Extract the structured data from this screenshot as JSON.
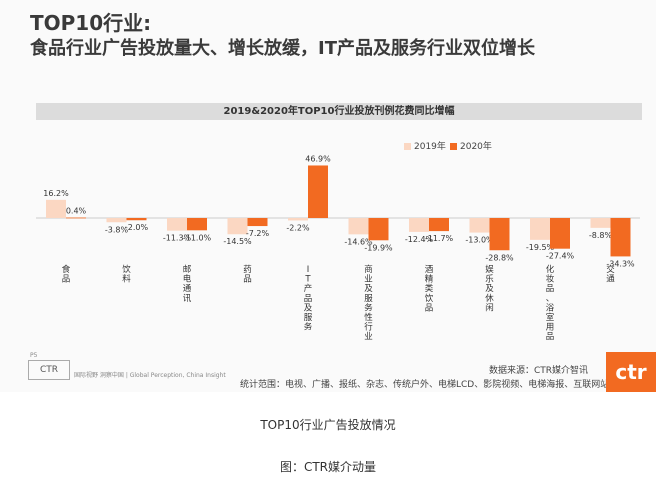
{
  "headline": {
    "line1": "TOP10行业:",
    "line2": "食品行业广告投放量大、增长放缓，IT产品及服务行业双位增长"
  },
  "chart_data": {
    "type": "bar",
    "title": "2019&2020年TOP10行业投放刊例花费同比增幅",
    "categories": [
      "食品",
      "饮料",
      "邮电通讯",
      "药品",
      "IT产品及服务",
      "商业及服务性行业",
      "酒精类饮品",
      "娱乐及休闲",
      "化妆品/浴室用品",
      "交通"
    ],
    "series": [
      {
        "name": "2019年",
        "color": "#fbd7c2",
        "values": [
          16.2,
          -3.8,
          -11.3,
          -14.5,
          -2.2,
          -14.6,
          -12.4,
          -13.0,
          -19.5,
          -8.8
        ]
      },
      {
        "name": "2020年",
        "color": "#f26a21",
        "values": [
          0.4,
          -2.0,
          -11.0,
          -7.2,
          46.9,
          -19.9,
          -11.7,
          -28.8,
          -27.4,
          -34.3
        ]
      }
    ],
    "value_labels": [
      [
        "16.2%",
        "-3.8%",
        "-11.3%",
        "-14.5%",
        "-2.2%",
        "-14.6%",
        "-12.4%",
        "-13.0%",
        "-19.5%",
        "-8.8%"
      ],
      [
        "0.4%",
        "-2.0%",
        "-11.0%",
        "-7.2%",
        "46.9%",
        "-19.9%",
        "-11.7%",
        "-28.8%",
        "-27.4%",
        "-34.3%"
      ]
    ],
    "category_labels_vertical": [
      "食品",
      "饮料",
      "邮电通讯",
      "药品",
      "IT产品及服务",
      "商业及服务性行业",
      "酒精类饮品",
      "娱乐及休闲",
      "化妆品、浴室用品",
      "交通"
    ],
    "ylim": [
      -40,
      50
    ],
    "xlabel": "",
    "ylabel": "",
    "legend_position": "top-right"
  },
  "footer": {
    "page": "P5",
    "logo_text": "CTR",
    "slogan": "国际视野 洞察中国 | Global Perception, China Insight",
    "source": "数据来源：CTR媒介智讯",
    "scope": "统计范围：电视、广播、报纸、杂志、传统户外、电梯LCD、影院视频、电梯海报、互联网站",
    "brand": "ctr"
  },
  "captions": {
    "line1": "TOP10行业广告投放情况",
    "line2": "图：CTR媒介动量"
  }
}
